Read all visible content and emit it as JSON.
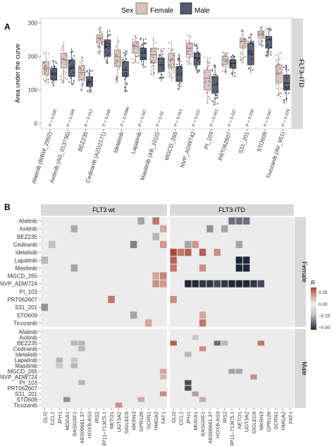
{
  "panelA": {
    "label": "A",
    "legend_title": "Sex",
    "legend_items": [
      {
        "name": "Female",
        "color": "#b68f87"
      },
      {
        "name": "Male",
        "color": "#363d54"
      }
    ],
    "ylabel": "Area under the curve",
    "facet": "FLT3–ITD",
    "yticks": [
      "0",
      "100",
      "200",
      "300"
    ]
  },
  "chart_data": [
    {
      "type": "box",
      "title": "",
      "facet": "FLT3–ITD",
      "xlabel": "",
      "ylabel": "Area under the curve",
      "ylim": [
        0,
        310
      ],
      "legend": "top",
      "series": [
        {
          "name": "Female"
        },
        {
          "name": "Male"
        }
      ],
      "categories": [
        "Afatinib (BIBW_2992)",
        "Axitinib (AG_013736)",
        "BEZ235",
        "Cediranib (AZD2171)",
        "Idelalisib",
        "Lapatinib",
        "Masitinib (AB_1010)",
        "MGCD_265",
        "NVP_ADW742",
        "PI_103",
        "PRT062607",
        "S31_201",
        "STO609",
        "Tivozanib (AV_951)"
      ],
      "pvalues": [
        "P = 0.035",
        "P = 0.049",
        "P = 0.012",
        "P = 0.046",
        "P = 0.0096",
        "P = 0.047",
        "P = 0.02",
        "P = 0.014",
        "P = 0.022",
        "P = 0.041",
        "P = 0.037",
        "P = 0.032",
        "P = 0.047",
        "P = 0.029"
      ],
      "female": [
        [
          115,
          145,
          165,
          185,
          215
        ],
        [
          120,
          165,
          190,
          210,
          245
        ],
        [
          95,
          130,
          152,
          172,
          200
        ],
        [
          205,
          240,
          255,
          265,
          290
        ],
        [
          120,
          170,
          200,
          220,
          260
        ],
        [
          180,
          210,
          230,
          245,
          265
        ],
        [
          140,
          180,
          205,
          225,
          260
        ],
        [
          125,
          165,
          190,
          210,
          245
        ],
        [
          175,
          205,
          225,
          240,
          265
        ],
        [
          60,
          100,
          135,
          160,
          200
        ],
        [
          150,
          175,
          190,
          200,
          215
        ],
        [
          180,
          225,
          245,
          255,
          280
        ],
        [
          230,
          255,
          265,
          275,
          290
        ],
        [
          80,
          120,
          150,
          175,
          215
        ]
      ],
      "male": [
        [
          110,
          130,
          150,
          165,
          190
        ],
        [
          115,
          140,
          165,
          190,
          225
        ],
        [
          90,
          110,
          125,
          140,
          165
        ],
        [
          180,
          200,
          230,
          250,
          280
        ],
        [
          95,
          140,
          160,
          185,
          220
        ],
        [
          165,
          190,
          210,
          225,
          255
        ],
        [
          125,
          155,
          175,
          195,
          225
        ],
        [
          100,
          125,
          145,
          170,
          210
        ],
        [
          150,
          175,
          195,
          210,
          240
        ],
        [
          55,
          90,
          115,
          140,
          175
        ],
        [
          140,
          165,
          180,
          190,
          205
        ],
        [
          150,
          175,
          215,
          240,
          270
        ],
        [
          200,
          225,
          250,
          260,
          285
        ],
        [
          60,
          100,
          120,
          145,
          175
        ]
      ]
    },
    {
      "type": "heatmap",
      "title": "",
      "columns_facets": [
        "FLT3 wt",
        "FLT3-ITD"
      ],
      "row_facets": [
        "Female",
        "Male"
      ],
      "rows": [
        "Afatinib",
        "Axitinib",
        "BEZ235",
        "Cediranib",
        "Idelalisib",
        "Lapatinib",
        "Masitinib",
        "MGCD_265",
        "NVP_ADW724",
        "PI_103",
        "PRT062607",
        "S31_201",
        "STO609",
        "Ticozanib"
      ],
      "columns": [
        "GLI2",
        "CCL1",
        "JPH1",
        "MDGA1",
        "RASGRF1",
        "AE006661.37",
        "HOXB-AS3",
        "IRS2",
        "RP11–713C5.1",
        "NETO1",
        "UGT3A2",
        "SIGLEC6",
        "MKRN3",
        "GPR126",
        "SCRN1",
        "HMGA2",
        "FAT1"
      ],
      "legend_title": "R",
      "legend_ticks": [
        "0.25",
        "0.00",
        "−0.25",
        "−0.50"
      ],
      "legend_range": [
        -0.55,
        0.35
      ],
      "female_wt": [
        [
          0,
          13,
          -0.2
        ],
        [
          0,
          15,
          0.25
        ],
        [
          1,
          4,
          -0.18
        ],
        [
          1,
          16,
          0.15
        ],
        [
          2,
          15,
          -0.15
        ],
        [
          3,
          1,
          -0.12
        ],
        [
          3,
          12,
          -0.3
        ],
        [
          3,
          16,
          0.18
        ],
        [
          5,
          0,
          -0.15
        ],
        [
          6,
          4,
          -0.2
        ],
        [
          7,
          15,
          0.15
        ],
        [
          7,
          16,
          0.22
        ],
        [
          8,
          15,
          0.2
        ],
        [
          8,
          16,
          0.18
        ],
        [
          10,
          9,
          0.25
        ],
        [
          11,
          0,
          -0.25
        ],
        [
          12,
          12,
          -0.2
        ],
        [
          13,
          14,
          0.15
        ]
      ],
      "female_itd": [
        [
          0,
          8,
          -0.35
        ],
        [
          0,
          9,
          -0.35
        ],
        [
          0,
          10,
          -0.35
        ],
        [
          1,
          5,
          -0.25
        ],
        [
          1,
          7,
          -0.2
        ],
        [
          3,
          2,
          -0.2
        ],
        [
          3,
          3,
          0.18
        ],
        [
          3,
          9,
          -0.2
        ],
        [
          4,
          0,
          0.4
        ],
        [
          4,
          1,
          0.25
        ],
        [
          4,
          2,
          0.3
        ],
        [
          4,
          4,
          0.3
        ],
        [
          4,
          6,
          0.2
        ],
        [
          5,
          0,
          0.3
        ],
        [
          5,
          9,
          -0.55
        ],
        [
          5,
          10,
          -0.55
        ],
        [
          6,
          0,
          0.25
        ],
        [
          6,
          4,
          0.2
        ],
        [
          6,
          9,
          -0.55
        ],
        [
          6,
          10,
          -0.55
        ],
        [
          8,
          2,
          -0.55
        ],
        [
          8,
          3,
          -0.55
        ],
        [
          8,
          4,
          -0.5
        ],
        [
          8,
          5,
          -0.5
        ],
        [
          8,
          6,
          -0.45
        ],
        [
          8,
          7,
          -0.5
        ],
        [
          8,
          8,
          -0.55
        ],
        [
          8,
          9,
          -0.55
        ],
        [
          8,
          10,
          -0.55
        ],
        [
          8,
          11,
          -0.5
        ],
        [
          8,
          12,
          -0.45
        ],
        [
          10,
          0,
          0.2
        ],
        [
          12,
          4,
          0.15
        ],
        [
          13,
          4,
          0.25
        ]
      ],
      "male_wt": [
        [
          2,
          4,
          -0.15
        ],
        [
          2,
          5,
          -0.15
        ],
        [
          3,
          5,
          -0.15
        ],
        [
          5,
          2,
          -0.15
        ],
        [
          5,
          4,
          -0.1
        ],
        [
          6,
          2,
          -0.1
        ],
        [
          6,
          4,
          -0.15
        ],
        [
          7,
          16,
          0.15
        ],
        [
          8,
          16,
          0.12
        ],
        [
          9,
          5,
          -0.15
        ],
        [
          11,
          16,
          0.2
        ],
        [
          12,
          3,
          -0.25
        ],
        [
          12,
          13,
          0.15
        ],
        [
          13,
          10,
          0.2
        ]
      ],
      "male_itd": [
        [
          1,
          3,
          -0.1
        ],
        [
          2,
          0,
          0.3
        ],
        [
          2,
          6,
          -0.35
        ],
        [
          2,
          7,
          -0.15
        ],
        [
          2,
          12,
          0.25
        ],
        [
          3,
          4,
          0.2
        ],
        [
          4,
          2,
          -0.15
        ],
        [
          7,
          8,
          -0.2
        ],
        [
          7,
          9,
          -0.2
        ],
        [
          8,
          11,
          0.2
        ],
        [
          9,
          2,
          -0.45
        ],
        [
          10,
          2,
          -0.45
        ],
        [
          11,
          3,
          -0.2
        ],
        [
          12,
          4,
          0.15
        ]
      ]
    }
  ],
  "panelB": {
    "label": "B"
  }
}
